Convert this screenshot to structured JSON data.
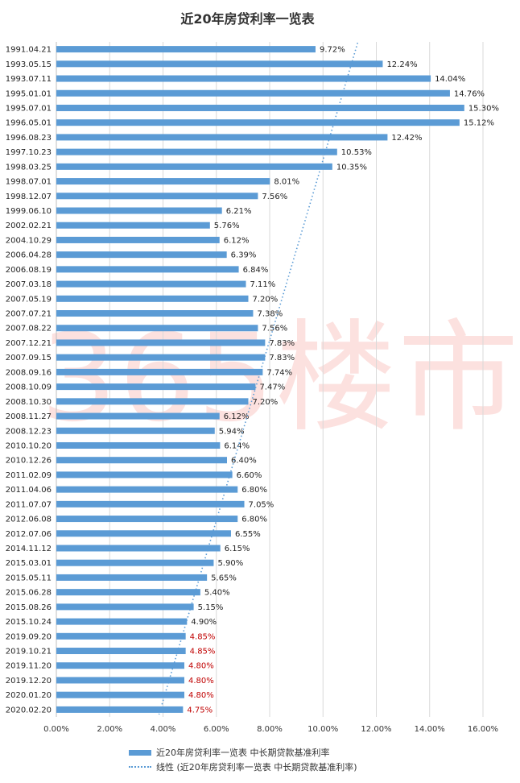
{
  "chart_data": {
    "type": "bar",
    "orientation": "horizontal",
    "title": "近20年房贷利率一览表",
    "categories": [
      "1991.04.21",
      "1993.05.15",
      "1993.07.11",
      "1995.01.01",
      "1995.07.01",
      "1996.05.01",
      "1996.08.23",
      "1997.10.23",
      "1998.03.25",
      "1998.07.01",
      "1998.12.07",
      "1999.06.10",
      "2002.02.21",
      "2004.10.29",
      "2006.04.28",
      "2006.08.19",
      "2007.03.18",
      "2007.05.19",
      "2007.07.21",
      "2007.08.22",
      "2007.12.21",
      "2007.09.15",
      "2008.09.16",
      "2008.10.09",
      "2008.10.30",
      "2008.11.27",
      "2008.12.23",
      "2010.10.20",
      "2010.12.26",
      "2011.02.09",
      "2011.04.06",
      "2011.07.07",
      "2012.06.08",
      "2012.07.06",
      "2014.11.12",
      "2015.03.01",
      "2015.05.11",
      "2015.06.28",
      "2015.08.26",
      "2015.10.24",
      "2019.09.20",
      "2019.10.21",
      "2019.11.20",
      "2019.12.20",
      "2020.01.20",
      "2020.02.20"
    ],
    "values": [
      9.72,
      12.24,
      14.04,
      14.76,
      15.3,
      15.12,
      12.42,
      10.53,
      10.35,
      8.01,
      7.56,
      6.21,
      5.76,
      6.12,
      6.39,
      6.84,
      7.11,
      7.2,
      7.38,
      7.56,
      7.83,
      7.83,
      7.74,
      7.47,
      7.2,
      6.12,
      5.94,
      6.14,
      6.4,
      6.6,
      6.8,
      7.05,
      6.8,
      6.55,
      6.15,
      5.9,
      5.65,
      5.4,
      5.15,
      4.9,
      4.85,
      4.85,
      4.8,
      4.8,
      4.8,
      4.75
    ],
    "data_labels": [
      "9.72%",
      "12.24%",
      "14.04%",
      "14.76%",
      "15.30%",
      "15.12%",
      "12.42%",
      "10.53%",
      "10.35%",
      "8.01%",
      "7.56%",
      "6.21%",
      "5.76%",
      "6.12%",
      "6.39%",
      "6.84%",
      "7.11%",
      "7.20%",
      "7.38%",
      "7.56%",
      "7.83%",
      "7.83%",
      "7.74%",
      "7.47%",
      "7.20%",
      "6.12%",
      "5.94%",
      "6.14%",
      "6.40%",
      "6.60%",
      "6.80%",
      "7.05%",
      "6.80%",
      "6.55%",
      "6.15%",
      "5.90%",
      "5.65%",
      "5.40%",
      "5.15%",
      "4.90%",
      "4.85%",
      "4.85%",
      "4.80%",
      "4.80%",
      "4.80%",
      "4.75%"
    ],
    "highlight_from_index": 40,
    "x_ticks": [
      "0.00%",
      "2.00%",
      "4.00%",
      "6.00%",
      "8.00%",
      "10.00%",
      "12.00%",
      "14.00%",
      "16.00%"
    ],
    "xlim": [
      0,
      16
    ],
    "trendline": {
      "type": "linear",
      "start_value": 11.3,
      "end_value": 3.85
    },
    "legend": [
      "近20年房贷利率一览表 中长期贷款基准利率",
      "线性 (近20年房贷利率一览表 中长期贷款基准利率)"
    ],
    "legend_position": "bottom",
    "colors": {
      "bar": "#5b9bd5",
      "label": "#222222",
      "highlight_label": "#c00000",
      "grid": "#d9d9d9"
    }
  },
  "watermark": "365楼市"
}
